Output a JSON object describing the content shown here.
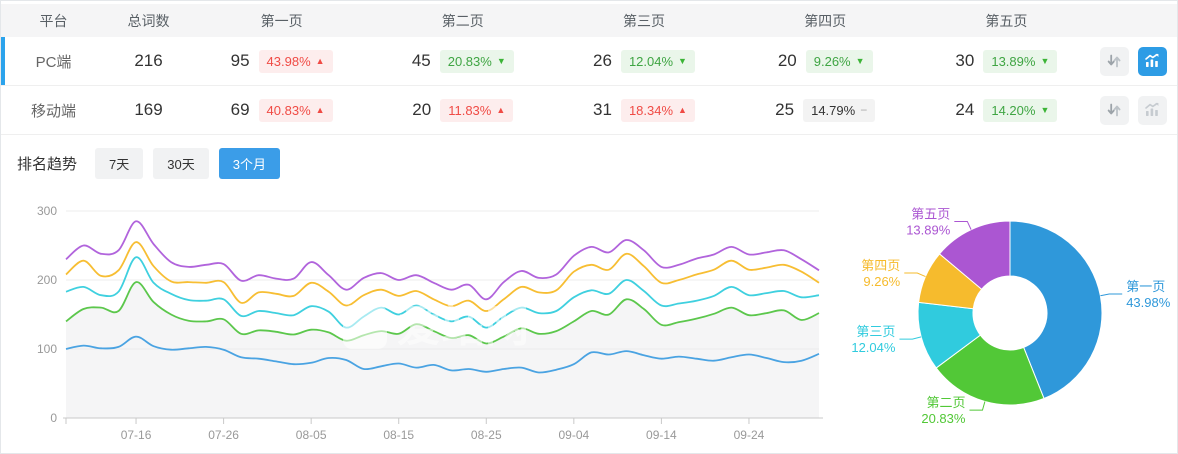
{
  "table": {
    "headers": {
      "platform": "平台",
      "total": "总词数",
      "pages": [
        "第一页",
        "第二页",
        "第三页",
        "第四页",
        "第五页"
      ]
    },
    "rows": [
      {
        "platform": "PC端",
        "total": "216",
        "selected": true,
        "chart_active": true,
        "pages": [
          {
            "count": "95",
            "pct": "43.98%",
            "trend": "up",
            "tone": "bad"
          },
          {
            "count": "45",
            "pct": "20.83%",
            "trend": "down",
            "tone": "good"
          },
          {
            "count": "26",
            "pct": "12.04%",
            "trend": "down",
            "tone": "good"
          },
          {
            "count": "20",
            "pct": "9.26%",
            "trend": "down",
            "tone": "good"
          },
          {
            "count": "30",
            "pct": "13.89%",
            "trend": "down",
            "tone": "good"
          }
        ]
      },
      {
        "platform": "移动端",
        "total": "169",
        "selected": false,
        "chart_active": false,
        "pages": [
          {
            "count": "69",
            "pct": "40.83%",
            "trend": "up",
            "tone": "bad"
          },
          {
            "count": "20",
            "pct": "11.83%",
            "trend": "up",
            "tone": "bad"
          },
          {
            "count": "31",
            "pct": "18.34%",
            "trend": "up",
            "tone": "bad"
          },
          {
            "count": "25",
            "pct": "14.79%",
            "trend": "flat",
            "tone": "neutral"
          },
          {
            "count": "24",
            "pct": "14.20%",
            "trend": "down",
            "tone": "good"
          }
        ]
      }
    ],
    "action_icons": {
      "sort": "up-down-arrows",
      "chart": "trend-chart"
    }
  },
  "trend": {
    "title": "排名趋势",
    "ranges": [
      {
        "label": "7天",
        "active": false
      },
      {
        "label": "30天",
        "active": false
      },
      {
        "label": "3个月",
        "active": true
      }
    ]
  },
  "watermark": "爱站网",
  "colors": {
    "accent_blue": "#2D9CE5",
    "row_indicator": "#2BA3EC",
    "badge_red_bg": "#FDEDED",
    "badge_red_text": "#F04B45",
    "badge_green_bg": "#EAF6EA",
    "badge_green_text": "#3FA543",
    "badge_gray_bg": "#F3F3F3",
    "tab_active": "#3B9DE8"
  },
  "chart_data": [
    {
      "type": "line",
      "title": "排名趋势 3个月",
      "ylim": [
        0,
        300
      ],
      "yticks": [
        0,
        100,
        200,
        300
      ],
      "grid": true,
      "x_tick_labels": [
        "07-16",
        "07-26",
        "08-05",
        "08-15",
        "08-25",
        "09-04",
        "09-14",
        "09-24"
      ],
      "area_color": "#F5F5F6",
      "x": [
        "07-08",
        "07-10",
        "07-12",
        "07-14",
        "07-16",
        "07-18",
        "07-20",
        "07-22",
        "07-24",
        "07-26",
        "07-28",
        "07-30",
        "08-01",
        "08-03",
        "08-05",
        "08-07",
        "08-09",
        "08-11",
        "08-13",
        "08-15",
        "08-17",
        "08-19",
        "08-21",
        "08-23",
        "08-25",
        "08-27",
        "08-29",
        "08-31",
        "09-02",
        "09-04",
        "09-06",
        "09-08",
        "09-10",
        "09-12",
        "09-14",
        "09-16",
        "09-18",
        "09-20",
        "09-22",
        "09-24",
        "09-26",
        "09-28",
        "09-30",
        "10-02"
      ],
      "series": [
        {
          "name": "第一页",
          "color": "#4AA3E2",
          "area": false,
          "values": [
            100,
            105,
            101,
            103,
            118,
            104,
            99,
            101,
            103,
            99,
            88,
            86,
            82,
            78,
            80,
            87,
            84,
            71,
            75,
            79,
            73,
            77,
            69,
            71,
            67,
            71,
            73,
            66,
            70,
            78,
            95,
            92,
            97,
            91,
            86,
            89,
            86,
            83,
            88,
            92,
            87,
            81,
            83,
            93
          ]
        },
        {
          "name": "第二页",
          "color": "#5CC74C",
          "area": true,
          "values": [
            140,
            158,
            160,
            155,
            197,
            168,
            150,
            141,
            140,
            143,
            122,
            127,
            125,
            121,
            128,
            124,
            112,
            120,
            126,
            122,
            136,
            126,
            116,
            120,
            108,
            118,
            130,
            122,
            126,
            140,
            155,
            150,
            172,
            158,
            135,
            139,
            144,
            151,
            160,
            149,
            152,
            156,
            142,
            152
          ]
        },
        {
          "name": "第三页",
          "color": "#3FD0DF",
          "area": false,
          "values": [
            183,
            190,
            178,
            183,
            233,
            196,
            180,
            171,
            170,
            172,
            148,
            155,
            152,
            149,
            162,
            154,
            131,
            147,
            160,
            150,
            163,
            150,
            140,
            147,
            131,
            147,
            160,
            152,
            155,
            175,
            185,
            180,
            200,
            184,
            163,
            166,
            170,
            177,
            190,
            178,
            181,
            184,
            175,
            178
          ]
        },
        {
          "name": "第四页",
          "color": "#F7BE33",
          "area": false,
          "values": [
            208,
            228,
            206,
            214,
            255,
            220,
            198,
            197,
            196,
            197,
            167,
            182,
            180,
            177,
            196,
            183,
            163,
            178,
            186,
            177,
            184,
            172,
            162,
            170,
            155,
            172,
            190,
            182,
            185,
            212,
            222,
            215,
            238,
            220,
            196,
            200,
            208,
            215,
            228,
            215,
            218,
            222,
            212,
            196
          ]
        },
        {
          "name": "第五页",
          "color": "#B164DC",
          "area": false,
          "values": [
            230,
            250,
            238,
            243,
            285,
            252,
            226,
            219,
            222,
            223,
            199,
            207,
            202,
            202,
            226,
            207,
            186,
            203,
            210,
            200,
            207,
            196,
            186,
            193,
            172,
            197,
            213,
            203,
            208,
            235,
            248,
            240,
            258,
            243,
            219,
            222,
            231,
            237,
            248,
            237,
            240,
            243,
            230,
            214
          ]
        }
      ]
    },
    {
      "type": "pie",
      "donut": true,
      "start_angle": "top",
      "direction": "clockwise",
      "slices": [
        {
          "label": "第一页",
          "value": 43.98,
          "pct": "43.98%",
          "color": "#2F98DA"
        },
        {
          "label": "第二页",
          "value": 20.83,
          "pct": "20.83%",
          "color": "#52C837"
        },
        {
          "label": "第三页",
          "value": 12.04,
          "pct": "12.04%",
          "color": "#30CBDE"
        },
        {
          "label": "第四页",
          "value": 9.26,
          "pct": "9.26%",
          "color": "#F6BB2D"
        },
        {
          "label": "第五页",
          "value": 13.89,
          "pct": "13.89%",
          "color": "#AB56D2"
        }
      ]
    }
  ]
}
